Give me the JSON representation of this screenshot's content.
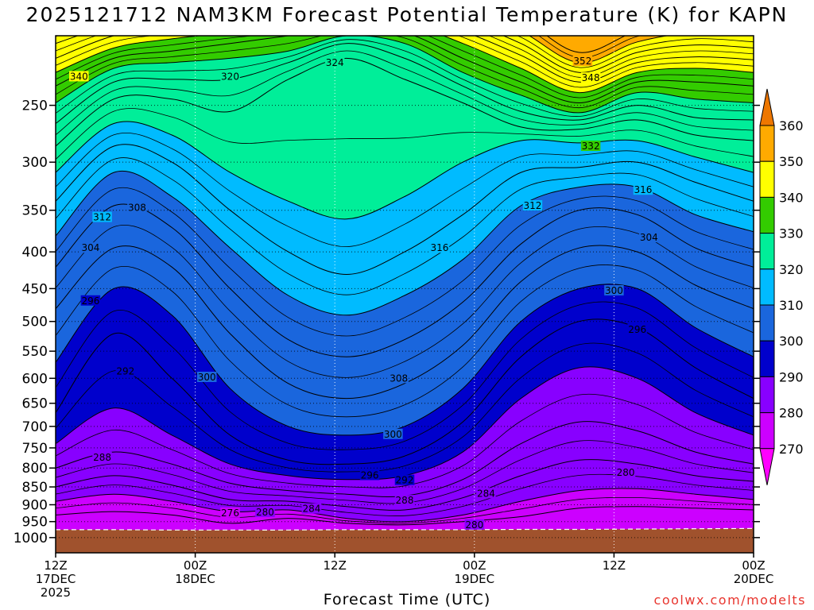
{
  "chart_data": {
    "type": "heatmap",
    "title": "2025121712 NAM3KM Forecast Potential Temperature (K) for KAPN",
    "xlabel": "Forecast Time (UTC)",
    "ylabel": "",
    "credit": "coolwx.com/modelts",
    "y_scale": "log-pressure",
    "ylim": [
      1050,
      200
    ],
    "yticks": [
      250,
      300,
      350,
      400,
      450,
      500,
      550,
      600,
      650,
      700,
      750,
      800,
      850,
      900,
      950,
      1000
    ],
    "ytick_labels": [
      "250",
      "300",
      "350",
      "400",
      "450",
      "500",
      "550",
      "600",
      "650",
      "700",
      "750",
      "800",
      "850",
      "900",
      "950",
      "1000"
    ],
    "xlim_hours": [
      0,
      60
    ],
    "xticks": [
      {
        "hour": 0,
        "lines": [
          "12Z",
          "17DEC",
          "2025"
        ]
      },
      {
        "hour": 12,
        "lines": [
          "00Z",
          "18DEC"
        ]
      },
      {
        "hour": 24,
        "lines": [
          "12Z",
          ""
        ]
      },
      {
        "hour": 36,
        "lines": [
          "00Z",
          "19DEC"
        ]
      },
      {
        "hour": 48,
        "lines": [
          "12Z",
          ""
        ]
      },
      {
        "hour": 60,
        "lines": [
          "00Z",
          "20DEC"
        ]
      }
    ],
    "grid": true,
    "colorbar": {
      "placement": "right",
      "levels": [
        270,
        280,
        290,
        300,
        310,
        320,
        330,
        340,
        350,
        360
      ],
      "labels": [
        "270",
        "280",
        "290",
        "300",
        "310",
        "320",
        "330",
        "340",
        "350",
        "360"
      ],
      "colors": [
        "#ff00ff",
        "#cc00ff",
        "#8800ff",
        "#0000cc",
        "#1a66dd",
        "#00bbff",
        "#00ee99",
        "#33cc00",
        "#ffff00",
        "#ffaa00",
        "#ee7700"
      ]
    },
    "ground_color": "#a0522d",
    "surface_pressure": [
      975,
      975,
      976,
      976,
      976,
      975,
      975,
      975,
      974,
      974,
      973,
      972,
      971
    ],
    "isentrope_grid": {
      "hours": [
        0,
        5,
        10,
        15,
        20,
        25,
        30,
        35,
        40,
        45,
        50,
        55,
        60
      ],
      "theta_levels": [
        276,
        280,
        284,
        288,
        292,
        296,
        300,
        304,
        308,
        312,
        316,
        320,
        324,
        328,
        332,
        336,
        340,
        344,
        348,
        352,
        356
      ],
      "pressure": [
        [
          930,
          920,
          930,
          955,
          940,
          955,
          960,
          950,
          935,
          910,
          905,
          910,
          915
        ],
        [
          890,
          870,
          890,
          920,
          915,
          940,
          950,
          930,
          890,
          860,
          855,
          870,
          885
        ],
        [
          850,
          820,
          845,
          885,
          890,
          905,
          915,
          880,
          820,
          780,
          790,
          820,
          835
        ],
        [
          800,
          760,
          790,
          840,
          860,
          870,
          875,
          830,
          740,
          690,
          710,
          760,
          790
        ],
        [
          740,
          660,
          720,
          790,
          820,
          830,
          820,
          760,
          640,
          580,
          600,
          670,
          720
        ],
        [
          670,
          520,
          600,
          720,
          780,
          790,
          770,
          690,
          560,
          500,
          510,
          580,
          640
        ],
        [
          570,
          450,
          490,
          620,
          700,
          720,
          700,
          620,
          500,
          450,
          450,
          510,
          560
        ],
        [
          480,
          395,
          420,
          520,
          610,
          640,
          610,
          540,
          440,
          395,
          400,
          445,
          480
        ],
        [
          420,
          345,
          370,
          450,
          530,
          560,
          530,
          470,
          390,
          350,
          355,
          395,
          420
        ],
        [
          380,
          310,
          335,
          395,
          460,
          490,
          460,
          410,
          345,
          325,
          325,
          355,
          375
        ],
        [
          340,
          285,
          300,
          350,
          400,
          430,
          400,
          355,
          310,
          305,
          300,
          320,
          340
        ],
        [
          310,
          265,
          275,
          310,
          340,
          360,
          335,
          300,
          280,
          282,
          280,
          295,
          310
        ],
        [
          285,
          245,
          245,
          255,
          230,
          215,
          230,
          248,
          268,
          270,
          262,
          275,
          280
        ],
        [
          265,
          232,
          230,
          230,
          218,
          205,
          215,
          235,
          255,
          262,
          250,
          260,
          262
        ],
        [
          248,
          222,
          218,
          215,
          210,
          200,
          205,
          225,
          242,
          256,
          240,
          245,
          248
        ],
        [
          235,
          215,
          210,
          205,
          200,
          195,
          198,
          215,
          232,
          248,
          232,
          232,
          235
        ],
        [
          225,
          208,
          202,
          198,
          195,
          190,
          192,
          205,
          222,
          240,
          225,
          222,
          225
        ],
        [
          215,
          200,
          195,
          190,
          190,
          185,
          186,
          197,
          213,
          232,
          218,
          214,
          216
        ],
        [
          205,
          193,
          188,
          183,
          185,
          180,
          180,
          190,
          205,
          225,
          211,
          206,
          208
        ],
        [
          196,
          186,
          181,
          176,
          180,
          175,
          175,
          183,
          197,
          218,
          204,
          198,
          200
        ],
        [
          188,
          179,
          174,
          170,
          175,
          170,
          170,
          176,
          189,
          211,
          197,
          191,
          192
        ]
      ]
    },
    "contour_labels": [
      {
        "text": "340",
        "hour": 2.0,
        "pressure": 228
      },
      {
        "text": "320",
        "hour": 15.0,
        "pressure": 228
      },
      {
        "text": "324",
        "hour": 24.0,
        "pressure": 218
      },
      {
        "text": "352",
        "hour": 45.3,
        "pressure": 217
      },
      {
        "text": "348",
        "hour": 46.0,
        "pressure": 229
      },
      {
        "text": "332",
        "hour": 46.0,
        "pressure": 285
      },
      {
        "text": "316",
        "hour": 50.5,
        "pressure": 328
      },
      {
        "text": "312",
        "hour": 41.0,
        "pressure": 345
      },
      {
        "text": "304",
        "hour": 51.0,
        "pressure": 382
      },
      {
        "text": "308",
        "hour": 7.0,
        "pressure": 347
      },
      {
        "text": "312",
        "hour": 4.0,
        "pressure": 358
      },
      {
        "text": "304",
        "hour": 3.0,
        "pressure": 395
      },
      {
        "text": "316",
        "hour": 33.0,
        "pressure": 395
      },
      {
        "text": "296",
        "hour": 3.0,
        "pressure": 468
      },
      {
        "text": "300",
        "hour": 48.0,
        "pressure": 453
      },
      {
        "text": "296",
        "hour": 50.0,
        "pressure": 513
      },
      {
        "text": "292",
        "hour": 6.0,
        "pressure": 587
      },
      {
        "text": "300",
        "hour": 13.0,
        "pressure": 598
      },
      {
        "text": "308",
        "hour": 29.5,
        "pressure": 600
      },
      {
        "text": "300",
        "hour": 29.0,
        "pressure": 718
      },
      {
        "text": "288",
        "hour": 4.0,
        "pressure": 773
      },
      {
        "text": "280",
        "hour": 49.0,
        "pressure": 812
      },
      {
        "text": "296",
        "hour": 27.0,
        "pressure": 819
      },
      {
        "text": "292",
        "hour": 30.0,
        "pressure": 832
      },
      {
        "text": "284",
        "hour": 37.0,
        "pressure": 868
      },
      {
        "text": "288",
        "hour": 30.0,
        "pressure": 888
      },
      {
        "text": "284",
        "hour": 22.0,
        "pressure": 912
      },
      {
        "text": "280",
        "hour": 18.0,
        "pressure": 922
      },
      {
        "text": "276",
        "hour": 15.0,
        "pressure": 924
      },
      {
        "text": "280",
        "hour": 36.0,
        "pressure": 960
      }
    ]
  }
}
